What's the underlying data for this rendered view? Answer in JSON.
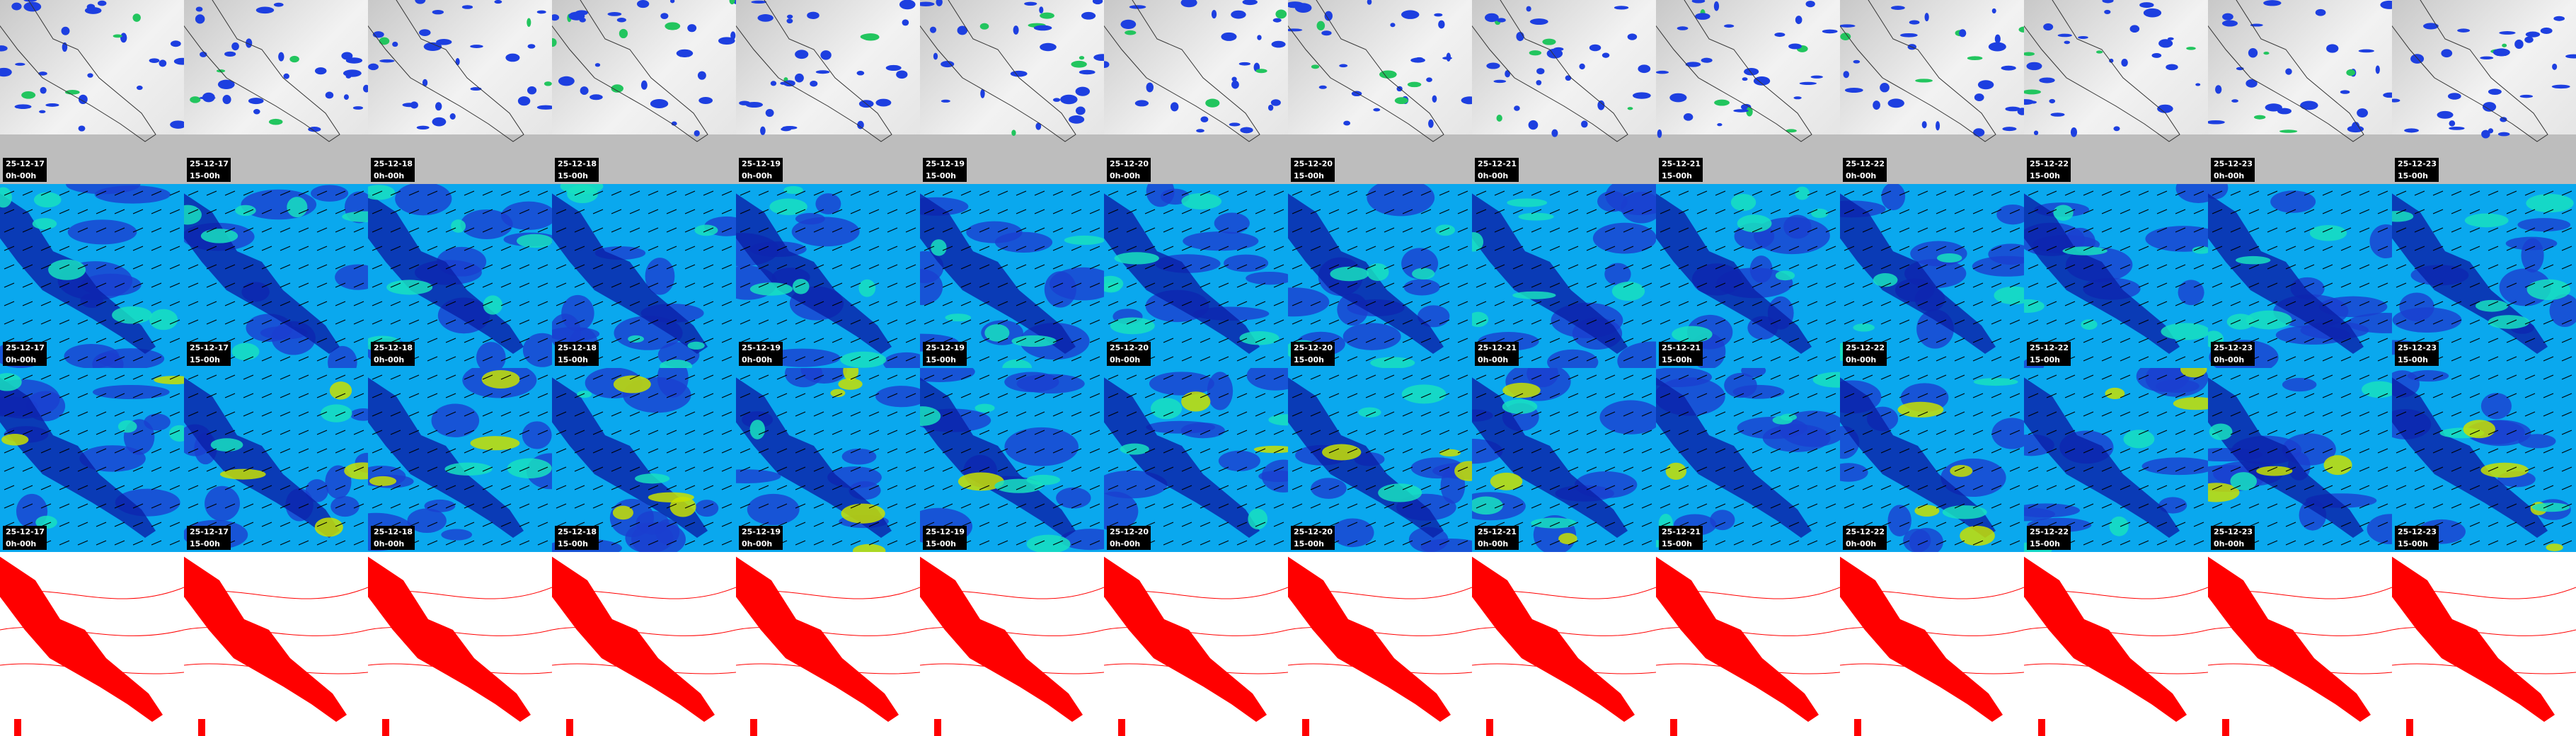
{
  "rows": [
    {
      "panels": [
        {
          "date": "25-12-17",
          "time": "0h-00h"
        },
        {
          "date": "25-12-17",
          "time": "15-00h"
        },
        {
          "date": "25-12-18",
          "time": "0h-00h"
        },
        {
          "date": "25-12-18",
          "time": "15-00h"
        },
        {
          "date": "25-12-19",
          "time": "0h-00h"
        },
        {
          "date": "25-12-19",
          "time": "15-00h"
        },
        {
          "date": "25-12-20",
          "time": "0h-00h"
        },
        {
          "date": "25-12-20",
          "time": "15-00h"
        },
        {
          "date": "25-12-21",
          "time": "0h-00h"
        },
        {
          "date": "25-12-21",
          "time": "15-00h"
        },
        {
          "date": "25-12-22",
          "time": "0h-00h"
        },
        {
          "date": "25-12-22",
          "time": "15-00h"
        },
        {
          "date": "25-12-23",
          "time": "0h-00h"
        },
        {
          "date": "25-12-23",
          "time": "15-00h"
        }
      ]
    },
    {
      "panels": [
        {
          "date": "25-12-17",
          "time": "0h-00h"
        },
        {
          "date": "25-12-17",
          "time": "15-00h"
        },
        {
          "date": "25-12-18",
          "time": "0h-00h"
        },
        {
          "date": "25-12-18",
          "time": "15-00h"
        },
        {
          "date": "25-12-19",
          "time": "0h-00h"
        },
        {
          "date": "25-12-19",
          "time": "15-00h"
        },
        {
          "date": "25-12-20",
          "time": "0h-00h"
        },
        {
          "date": "25-12-20",
          "time": "15-00h"
        },
        {
          "date": "25-12-21",
          "time": "0h-00h"
        },
        {
          "date": "25-12-21",
          "time": "15-00h"
        },
        {
          "date": "25-12-22",
          "time": "0h-00h"
        },
        {
          "date": "25-12-22",
          "time": "15-00h"
        },
        {
          "date": "25-12-23",
          "time": "0h-00h"
        },
        {
          "date": "25-12-23",
          "time": "15-00h"
        }
      ]
    },
    {
      "panels": [
        {
          "date": "25-12-17",
          "time": "0h-00h"
        },
        {
          "date": "25-12-17",
          "time": "15-00h"
        },
        {
          "date": "25-12-18",
          "time": "0h-00h"
        },
        {
          "date": "25-12-18",
          "time": "15-00h"
        },
        {
          "date": "25-12-19",
          "time": "0h-00h"
        },
        {
          "date": "25-12-19",
          "time": "15-00h"
        },
        {
          "date": "25-12-20",
          "time": "0h-00h"
        },
        {
          "date": "25-12-20",
          "time": "15-00h"
        },
        {
          "date": "25-12-21",
          "time": "0h-00h"
        },
        {
          "date": "25-12-21",
          "time": "15-00h"
        },
        {
          "date": "25-12-22",
          "time": "0h-00h"
        },
        {
          "date": "25-12-22",
          "time": "15-00h"
        },
        {
          "date": "25-12-23",
          "time": "0h-00h"
        },
        {
          "date": "25-12-23",
          "time": "15-00h"
        }
      ]
    }
  ]
}
